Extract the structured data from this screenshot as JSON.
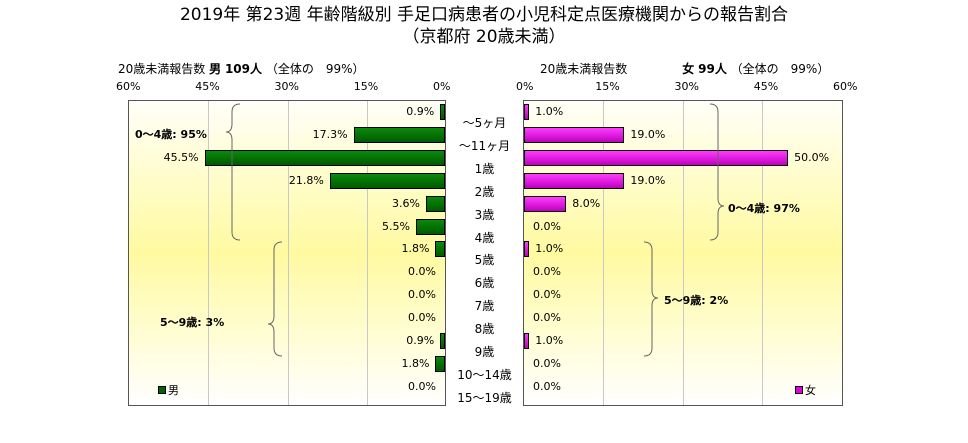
{
  "chart_data": {
    "type": "bar",
    "title": "2019年 第23週 年齢階級別 手足口病患者の小児科定点医療機関からの報告割合",
    "subtitle": "（京都府 20歳未満）",
    "categories": [
      "～5ヶ月",
      "～11ヶ月",
      "1歳",
      "2歳",
      "3歳",
      "4歳",
      "5歳",
      "6歳",
      "7歳",
      "8歳",
      "9歳",
      "10～14歳",
      "15～19歳"
    ],
    "xlim": [
      0,
      60
    ],
    "ticks_left": [
      "60%",
      "45%",
      "30%",
      "15%",
      "0%"
    ],
    "ticks_right": [
      "0%",
      "15%",
      "30%",
      "45%",
      "60%"
    ],
    "series": [
      {
        "name": "男",
        "color": "#006400",
        "values": [
          0.9,
          17.3,
          45.5,
          21.8,
          3.6,
          5.5,
          1.8,
          0.0,
          0.0,
          0.0,
          0.9,
          1.8,
          0.0
        ],
        "header_label": "20歳未満報告数",
        "header_sex": "男",
        "header_count": "109人",
        "header_share": "（全体の　99%）",
        "annotations": [
          "0～4歳: 95%",
          "5～9歳: 3%"
        ]
      },
      {
        "name": "女",
        "color": "#e000e0",
        "values": [
          1.0,
          19.0,
          50.0,
          19.0,
          8.0,
          0.0,
          1.0,
          0.0,
          0.0,
          0.0,
          1.0,
          0.0,
          0.0
        ],
        "header_label": "20歳未満報告数",
        "header_sex": "女",
        "header_count": "99人",
        "header_share": "（全体の　99%）",
        "annotations": [
          "0～4歳: 97%",
          "5～9歳: 2%"
        ]
      }
    ]
  }
}
